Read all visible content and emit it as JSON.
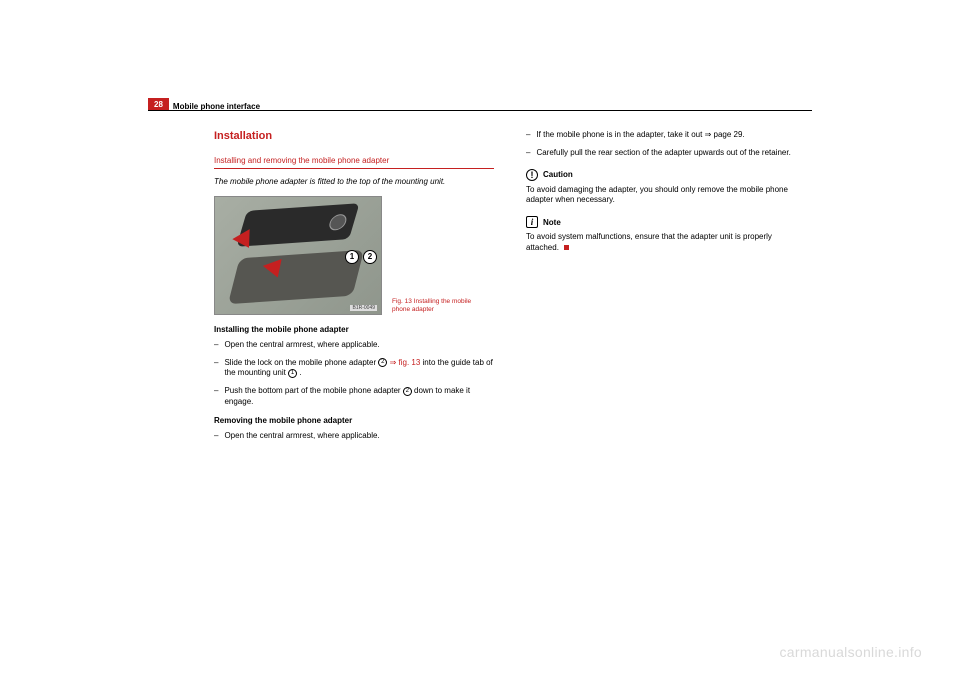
{
  "page_number": "28",
  "section_name": "Mobile phone interface",
  "heading_installation": "Installation",
  "subheading": "Installing and removing the mobile phone adapter",
  "intro_text": "The mobile phone adapter is fitted to the top of the mounting unit.",
  "figure": {
    "caption": "Fig. 13   Installing the mobile phone adapter",
    "code": "B1R-0049",
    "callout1": "1",
    "callout2": "2",
    "colors": {
      "background_gradient_from": "#a8aea4",
      "background_gradient_to": "#8f968c",
      "arrow": "#c52020"
    }
  },
  "install_heading": "Installing the mobile phone adapter",
  "install_steps": {
    "s1": "Open the central armrest, where applicable.",
    "s2a": "Slide the lock on the mobile phone adapter ",
    "s2_num": "2",
    "s2_ref": " ⇒ fig. 13",
    "s2b": " into the guide tab of the mounting unit ",
    "s2_num2": "1",
    "s2c": ".",
    "s3a": "Push the bottom part of the mobile phone adapter ",
    "s3_num": "2",
    "s3b": " down to make it engage."
  },
  "remove_heading": "Removing the mobile phone adapter",
  "remove_steps": {
    "s1": "Open the central armrest, where applicable.",
    "s2a": "If the mobile phone is in the adapter, take it out ",
    "s2_ref": "⇒ page 29.",
    "s3": "Carefully pull the rear section of the adapter upwards out of the retainer."
  },
  "caution": {
    "title": "Caution",
    "icon": "!",
    "text": "To avoid damaging the adapter, you should only remove the mobile phone adapter when necessary."
  },
  "note": {
    "title": "Note",
    "icon": "i",
    "text": "To avoid system malfunctions, ensure that the adapter unit is properly attached."
  },
  "watermark": "carmanualsonline.info",
  "colors": {
    "brand_red": "#c52020",
    "text": "#000000",
    "watermark": "#d9d9d9"
  }
}
